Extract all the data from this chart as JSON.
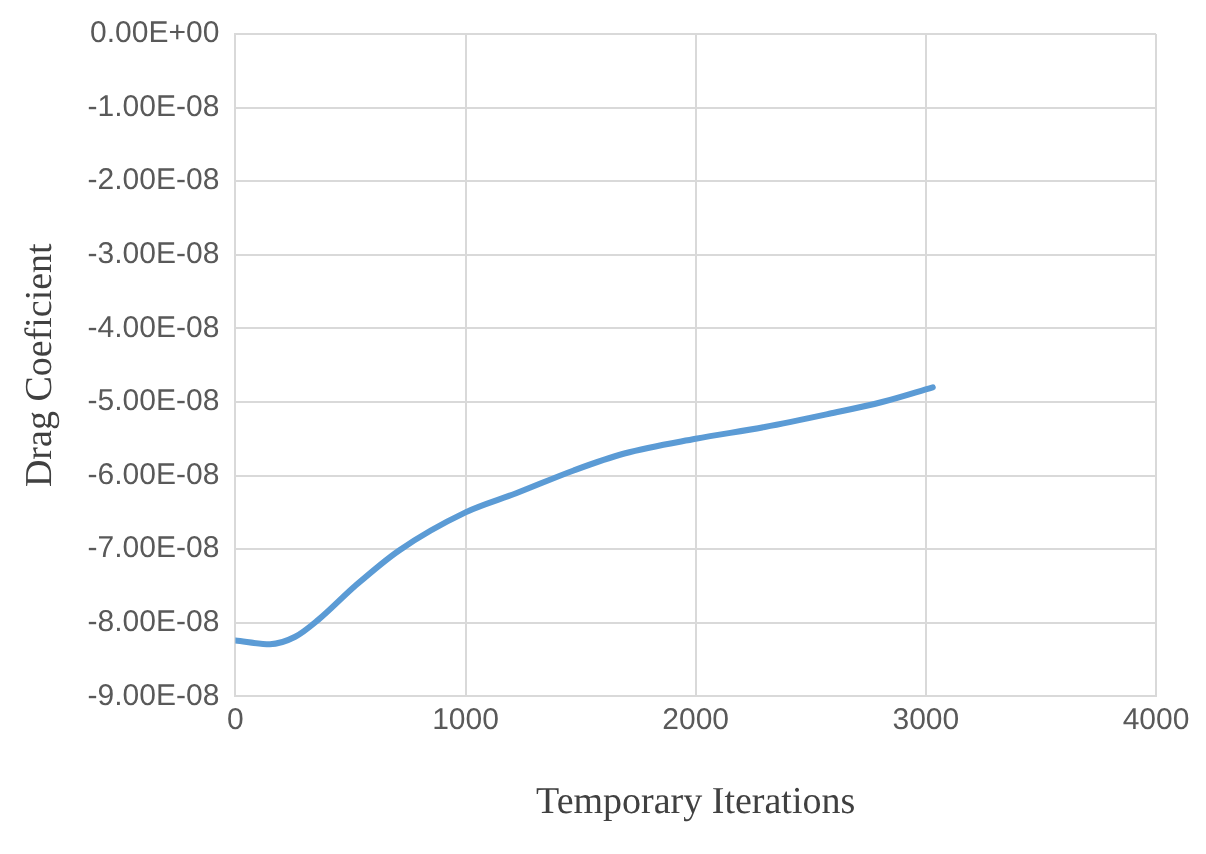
{
  "chart_data": {
    "type": "line",
    "xlabel": "Temporary Iterations",
    "ylabel": "Drag Coeficient",
    "x": [
      0,
      150,
      260,
      360,
      520,
      710,
      1000,
      1220,
      1470,
      1690,
      2000,
      2300,
      2580,
      2810,
      3030
    ],
    "series": [
      {
        "color": "#5b9bd5",
        "values": [
          -8.24e-08,
          -8.29e-08,
          -8.19e-08,
          -7.96e-08,
          -7.5e-08,
          -7.02e-08,
          -6.5e-08,
          -6.24e-08,
          -5.93e-08,
          -5.7e-08,
          -5.5e-08,
          -5.34e-08,
          -5.16e-08,
          -5e-08,
          -4.8e-08
        ]
      }
    ],
    "xlim": [
      0,
      4000
    ],
    "xticks": [
      0,
      1000,
      2000,
      3000,
      4000
    ],
    "ylim": [
      -9e-08,
      0
    ],
    "yticks": [
      {
        "value": 0,
        "label": "0.00E+00"
      },
      {
        "value": -1e-08,
        "label": "-1.00E-08"
      },
      {
        "value": -2e-08,
        "label": "-2.00E-08"
      },
      {
        "value": -3e-08,
        "label": "-3.00E-08"
      },
      {
        "value": -4e-08,
        "label": "-4.00E-08"
      },
      {
        "value": -5e-08,
        "label": "-5.00E-08"
      },
      {
        "value": -6e-08,
        "label": "-6.00E-08"
      },
      {
        "value": -7e-08,
        "label": "-7.00E-08"
      },
      {
        "value": -8e-08,
        "label": "-8.00E-08"
      },
      {
        "value": -9e-08,
        "label": "-9.00E-08"
      }
    ],
    "grid": true,
    "marker": "none",
    "line_style": "solid",
    "legend": false
  }
}
